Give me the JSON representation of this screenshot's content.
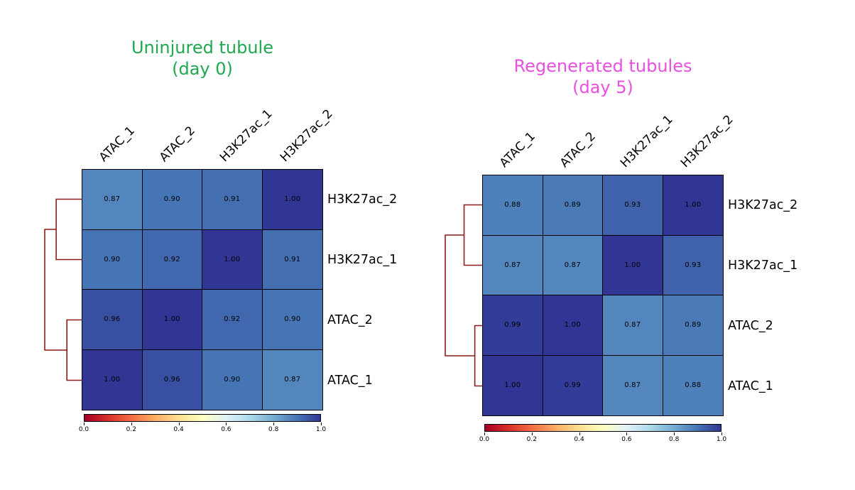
{
  "figure": {
    "background": "#ffffff"
  },
  "colormap": {
    "name": "RdYlBu",
    "anchors": [
      "#a50026",
      "#d73027",
      "#f46d43",
      "#fdae61",
      "#fee090",
      "#ffffbf",
      "#e0f3f8",
      "#abd9e9",
      "#74add1",
      "#4575b4",
      "#313695"
    ]
  },
  "dendrogram_color": "#8e1c1c",
  "grid_line_color": "#000000",
  "value_text_color": "#000000",
  "chart_data": [
    {
      "type": "heatmap",
      "title_line1": "Uninjured tubule",
      "title_line2": "(day 0)",
      "title_color": "#1fa84f",
      "columns": [
        "ATAC_1",
        "ATAC_2",
        "H3K27ac_1",
        "H3K27ac_2"
      ],
      "rows": [
        "H3K27ac_2",
        "H3K27ac_1",
        "ATAC_2",
        "ATAC_1"
      ],
      "values": [
        [
          0.87,
          0.9,
          0.91,
          1.0
        ],
        [
          0.9,
          0.92,
          1.0,
          0.91
        ],
        [
          0.96,
          1.0,
          0.92,
          0.9
        ],
        [
          1.0,
          0.96,
          0.9,
          0.87
        ]
      ],
      "vmin": 0.0,
      "vmax": 1.0,
      "colorbar_ticks": [
        "0.0",
        "0.2",
        "0.4",
        "0.6",
        "0.8",
        "1.0"
      ],
      "legend_position": "bottom",
      "dendrogram": {
        "orientation": "left",
        "pair_merges": [
          {
            "rows": [
              0,
              1
            ],
            "depth": 0.69
          },
          {
            "rows": [
              2,
              3
            ],
            "depth": 0.4
          }
        ],
        "root_depth": 1.0
      }
    },
    {
      "type": "heatmap",
      "title_line1": "Regenerated tubules",
      "title_line2": "(day 5)",
      "title_color": "#e94fe1",
      "columns": [
        "ATAC_1",
        "ATAC_2",
        "H3K27ac_1",
        "H3K27ac_2"
      ],
      "rows": [
        "H3K27ac_2",
        "H3K27ac_1",
        "ATAC_2",
        "ATAC_1"
      ],
      "values": [
        [
          0.88,
          0.89,
          0.93,
          1.0
        ],
        [
          0.87,
          0.87,
          1.0,
          0.93
        ],
        [
          0.99,
          1.0,
          0.87,
          0.89
        ],
        [
          1.0,
          0.99,
          0.87,
          0.88
        ]
      ],
      "vmin": 0.0,
      "vmax": 1.0,
      "colorbar_ticks": [
        "0.0",
        "0.2",
        "0.4",
        "0.6",
        "0.8",
        "1.0"
      ],
      "legend_position": "bottom",
      "dendrogram": {
        "orientation": "left",
        "pair_merges": [
          {
            "rows": [
              0,
              1
            ],
            "depth": 0.49
          },
          {
            "rows": [
              2,
              3
            ],
            "depth": 0.2
          }
        ],
        "root_depth": 1.0
      }
    }
  ]
}
